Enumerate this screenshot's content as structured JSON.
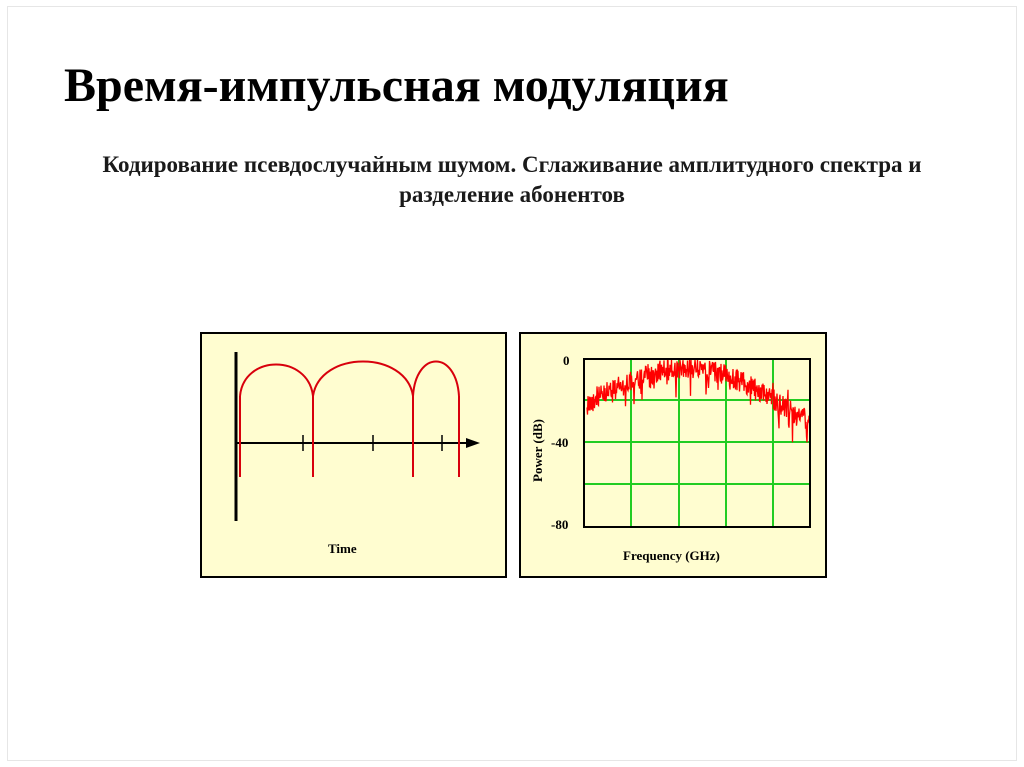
{
  "slide": {
    "title": "Время-импульсная модуляция",
    "subtitle": "Кодирование псевдослучайным шумом. Сглаживание амплитудного спектра и разделение абонентов"
  },
  "time_diagram": {
    "xlabel": "Time",
    "pulse_color": "#d8000c",
    "axis_color": "#000000",
    "background": "#fffdd0"
  },
  "spectrum_plot": {
    "xlabel": "Frequency (GHz)",
    "ylabel": "Power (dB)",
    "yticks": [
      "0",
      "-40",
      "-80"
    ],
    "grid_color": "#22cc22",
    "trace_color": "#ff0000",
    "background": "#fffdd0"
  }
}
